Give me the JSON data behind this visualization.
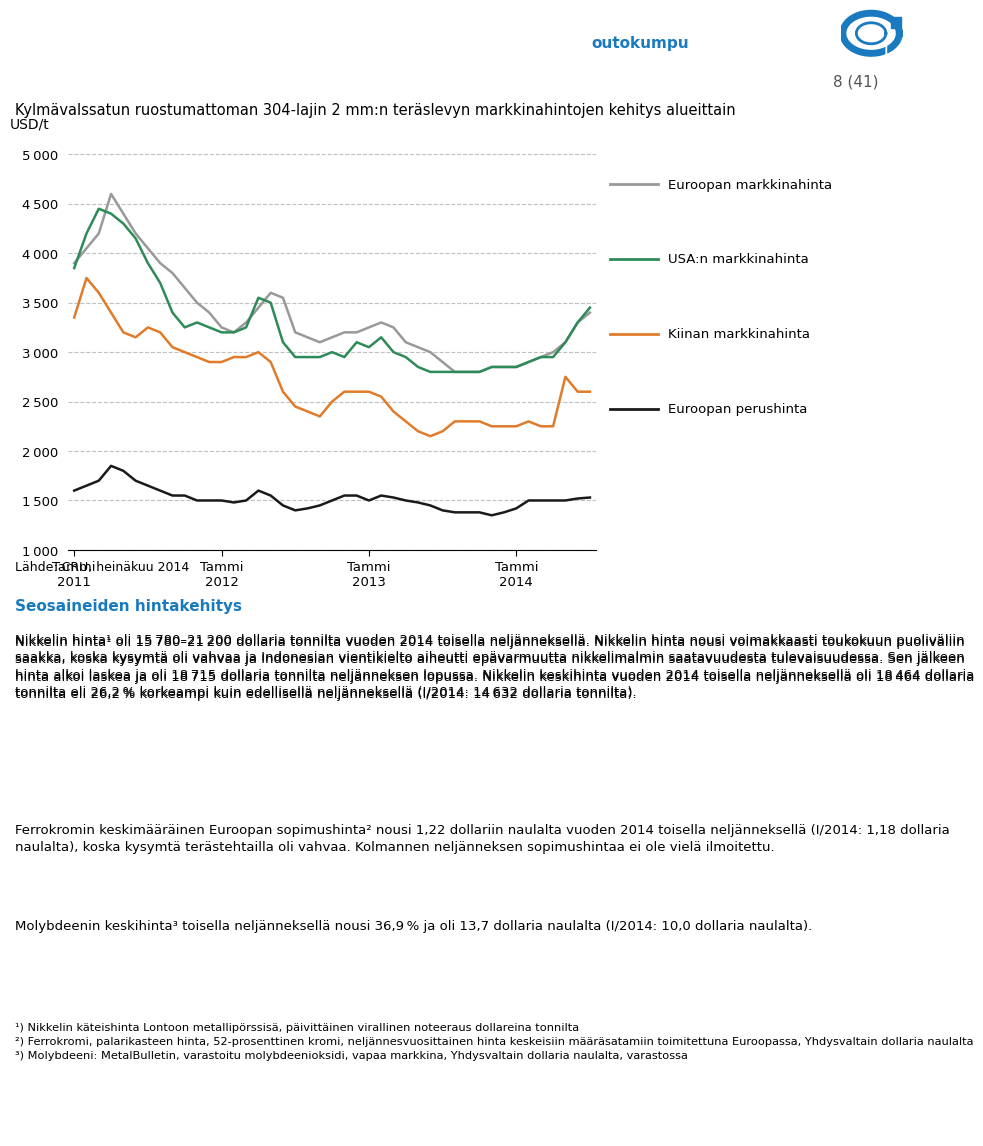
{
  "title": "Kylmävalssatun ruostumattoman 304-lajin 2 mm:n teräslevyn markkinahintojen kehitys alueittain",
  "page_label": "8 (41)",
  "ylabel": "USD/t",
  "source": "Lähde: CRU, heinäkuu 2014",
  "section_title": "Seosaineiden hintakehitys",
  "ylim": [
    1000,
    5200
  ],
  "yticks": [
    1000,
    1500,
    2000,
    2500,
    3000,
    3500,
    4000,
    4500,
    5000
  ],
  "xtick_labels": [
    "Tammi\n2011",
    "Tammi\n2012",
    "Tammi\n2013",
    "Tammi\n2014"
  ],
  "legend_labels": [
    "Euroopan markkinahinta",
    "USA:n markkinahinta",
    "Kiinan markkinahinta",
    "Euroopan perushinta"
  ],
  "legend_colors": [
    "#999999",
    "#2e8b57",
    "#e07b2a",
    "#1a1a1a"
  ],
  "euroopan": [
    3900,
    4050,
    4200,
    4600,
    4400,
    4200,
    4050,
    3900,
    3800,
    3650,
    3500,
    3400,
    3250,
    3200,
    3300,
    3450,
    3600,
    3550,
    3200,
    3150,
    3100,
    3150,
    3200,
    3200,
    3250,
    3300,
    3250,
    3100,
    3050,
    3000,
    2900,
    2800,
    2800,
    2800,
    2850,
    2850,
    2850,
    2900,
    2950,
    3000,
    3100,
    3300,
    3400
  ],
  "usa": [
    3850,
    4200,
    4450,
    4400,
    4300,
    4150,
    3900,
    3700,
    3400,
    3250,
    3300,
    3250,
    3200,
    3200,
    3250,
    3550,
    3500,
    3100,
    2950,
    2950,
    2950,
    3000,
    2950,
    3100,
    3050,
    3150,
    3000,
    2950,
    2850,
    2800,
    2800,
    2800,
    2800,
    2800,
    2850,
    2850,
    2850,
    2900,
    2950,
    2950,
    3100,
    3300,
    3450
  ],
  "kiina": [
    3350,
    3750,
    3600,
    3400,
    3200,
    3150,
    3250,
    3200,
    3050,
    3000,
    2950,
    2900,
    2900,
    2950,
    2950,
    3000,
    2900,
    2600,
    2450,
    2400,
    2350,
    2500,
    2600,
    2600,
    2600,
    2550,
    2400,
    2300,
    2200,
    2150,
    2200,
    2300,
    2300,
    2300,
    2250,
    2250,
    2250,
    2300,
    2250,
    2250,
    2750,
    2600,
    2600
  ],
  "perushinta": [
    1600,
    1650,
    1700,
    1850,
    1800,
    1700,
    1650,
    1600,
    1550,
    1550,
    1500,
    1500,
    1500,
    1480,
    1500,
    1600,
    1550,
    1450,
    1400,
    1420,
    1450,
    1500,
    1550,
    1550,
    1500,
    1550,
    1530,
    1500,
    1480,
    1450,
    1400,
    1380,
    1380,
    1380,
    1350,
    1380,
    1420,
    1500,
    1500,
    1500,
    1500,
    1520,
    1530
  ],
  "body_para1": "Nikkelin hinta¹ oli 15 780–21 200 dollaria tonnilta vuoden 2014 toisella neljänneksellä. Nikkelin hinta nousi voimakkaasti toukokuun puoliväliin saakka, koska kysymtä oli vahvaa ja Indonesian vientikielto aiheutti epävarmuutta nikkelimalmin saatavuudesta tulevaisuudessa. Sen jälkeen hinta alkoi laskea ja oli 18 715 dollaria tonnilta neljänneksen lopussa. Nikkelin keskihinta vuoden 2014 toisella neljänneksellä oli 18 464 dollaria tonnilta eli 26,2 % korkeampi kuin edellisellä neljänneksellä (I/2014: 14 632 dollaria tonnilta).",
  "body_para2": "Ferrokromin keskimääräinen Euroopan sopimushinta² nousi 1,22 dollariin naulalta vuoden 2014 toisella neljänneksellä (I/2014: 1,18 dollaria naulalta), koska kysymtä terästehtailla oli vahvaa. Kolmannen neljänneksen sopimushintaa ei ole vielä ilmoitettu.",
  "body_para3": "Molybdeenin keskihinta³ toisella neljänneksellä nousi 36,9 % ja oli 13,7 dollaria naulalta (I/2014: 10,0 dollaria naulalta).",
  "fn1": "¹) Nikkelin käteishinta Lontoon metallipörssisä, päivittäinen virallinen noteeraus dollareina tonnilta",
  "fn2": "²) Ferrokromi, palarikasteen hinta, 52-prosenttinen kromi, neljännesvuosittainen hinta keskeisiin määräsatamiin toimitettuna Euroopassa, Yhdysvaltain dollaria naulalta",
  "fn3": "³) Molybdeeni: MetalBulletin, varastoitu molybdeenioksidi, vapaa markkina, Yhdysvaltain dollaria naulalta, varastossa"
}
